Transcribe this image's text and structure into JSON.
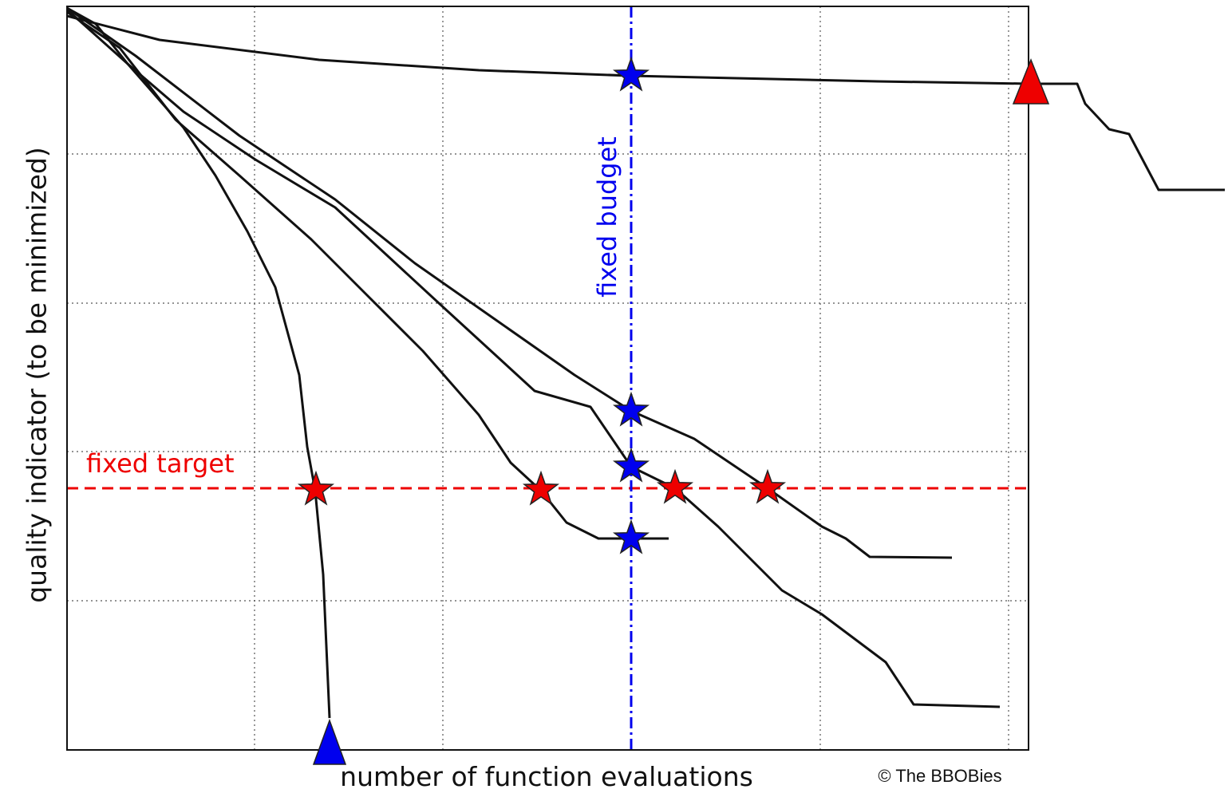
{
  "y_axis_label": "quality indicator (to be minimized)",
  "x_axis_label": "number of function evaluations",
  "target_label": "fixed target",
  "budget_label": "fixed budget",
  "credit": "© The BBOBies"
}
